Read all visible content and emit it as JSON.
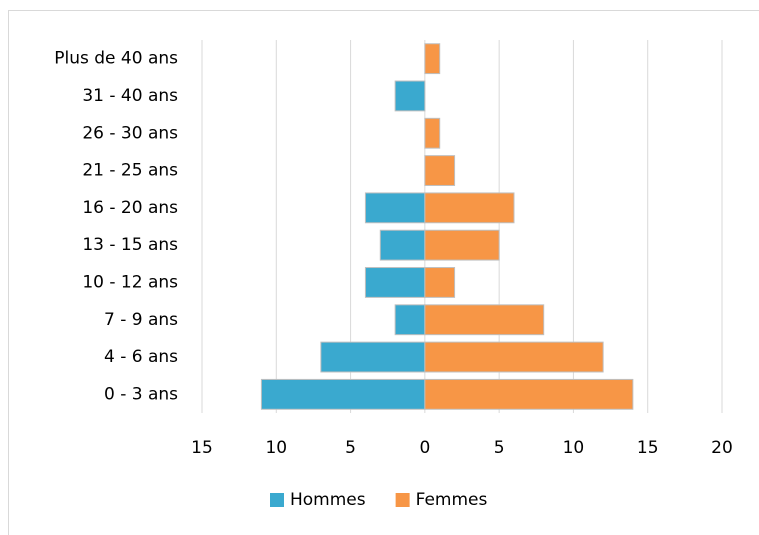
{
  "chart_data": {
    "type": "bar",
    "orientation": "horizontal",
    "stacked": true,
    "categories": [
      "Plus de 40 ans",
      "31 - 40 ans",
      "26 - 30 ans",
      "21 - 25 ans",
      "16 - 20 ans",
      "13 - 15 ans",
      "10 - 12 ans",
      "7 - 9 ans",
      "4 - 6 ans",
      "0 - 3 ans"
    ],
    "series": [
      {
        "name": "Hommes",
        "color": "#3aa9cf",
        "values": [
          0,
          -2,
          0,
          0,
          -4,
          -3,
          -4,
          -2,
          -7,
          -11
        ]
      },
      {
        "name": "Femmes",
        "color": "#f79646",
        "values": [
          1,
          0,
          1,
          2,
          6,
          5,
          2,
          8,
          12,
          14
        ]
      }
    ],
    "xlim": [
      -15,
      20
    ],
    "xticks": [
      {
        "value": -15,
        "label": "15"
      },
      {
        "value": -10,
        "label": "10"
      },
      {
        "value": -5,
        "label": "5"
      },
      0,
      5,
      10,
      15,
      20
    ],
    "grid": true,
    "legend": "bottom"
  }
}
